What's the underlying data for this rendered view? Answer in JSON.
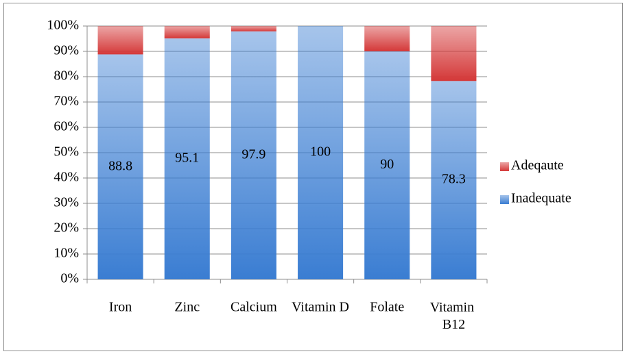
{
  "chart_data": {
    "type": "stacked_bar_percent",
    "categories": [
      "Iron",
      "Zinc",
      "Calcium",
      "Vitamin D",
      "Folate",
      "Vitamin B12"
    ],
    "series": [
      {
        "name": "Inadequate",
        "color": "#3a7dd2",
        "values": [
          88.8,
          95.1,
          97.9,
          100,
          90,
          78.3
        ],
        "data_labels": true
      },
      {
        "name": "Adeqaute",
        "color": "#d43838",
        "values": [
          11.2,
          4.9,
          2.1,
          0,
          10,
          21.7
        ],
        "data_labels": false
      }
    ],
    "ylim": [
      0,
      100
    ],
    "yticks": [
      {
        "value": 0,
        "label": "0%"
      },
      {
        "value": 10,
        "label": "10%"
      },
      {
        "value": 20,
        "label": "20%"
      },
      {
        "value": 30,
        "label": "30%"
      },
      {
        "value": 40,
        "label": "40%"
      },
      {
        "value": 50,
        "label": "50%"
      },
      {
        "value": 60,
        "label": "60%"
      },
      {
        "value": 70,
        "label": "70%"
      },
      {
        "value": 80,
        "label": "80%"
      },
      {
        "value": 90,
        "label": "90%"
      },
      {
        "value": 100,
        "label": "100%"
      }
    ],
    "grid": true,
    "legend": "right"
  }
}
